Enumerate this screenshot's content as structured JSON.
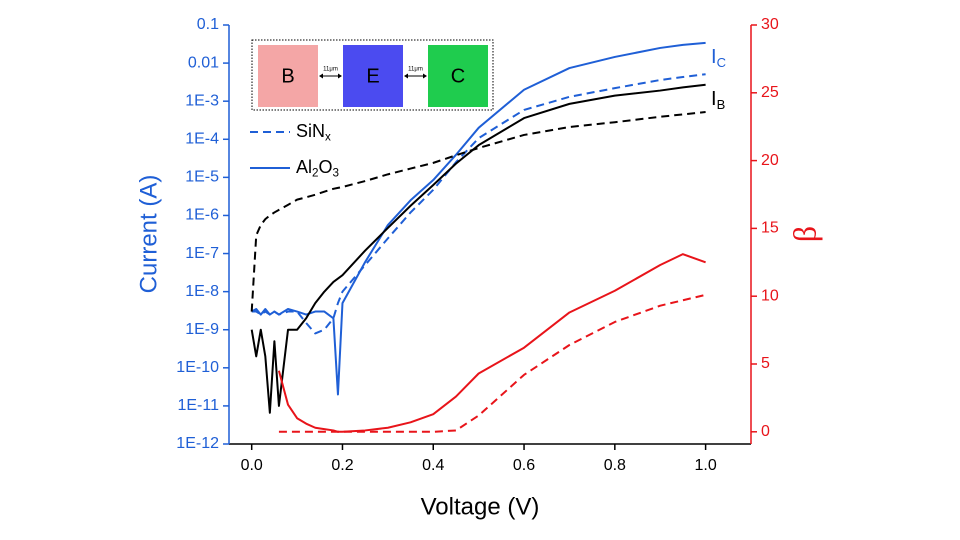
{
  "chart_data": {
    "type": "line",
    "x_label": "Voltage (V)",
    "y_label": "Current (A)",
    "y2_label": "β",
    "xlim": [
      -0.05,
      1.1
    ],
    "xticks": [
      {
        "value": 0,
        "label": "0.0"
      },
      0.2,
      0.4,
      0.6,
      0.8,
      {
        "value": 1,
        "label": "1.0"
      }
    ],
    "ylim": [
      1e-12,
      0.1
    ],
    "ylog": true,
    "yticks": [
      0.1,
      0.01,
      {
        "value": 0.001,
        "label": "1E-3"
      },
      {
        "value": 0.0001,
        "label": "1E-4"
      },
      {
        "value": 1e-05,
        "label": "1E-5"
      },
      {
        "value": 1e-06,
        "label": "1E-6"
      },
      {
        "value": 1e-07,
        "label": "1E-7"
      },
      {
        "value": 1e-08,
        "label": "1E-8"
      },
      {
        "value": 1e-09,
        "label": "1E-9"
      },
      {
        "value": 1e-10,
        "label": "1E-10"
      },
      {
        "value": 1e-11,
        "label": "1E-11"
      },
      {
        "value": 1e-12,
        "label": "1E-12"
      }
    ],
    "y2lim": [
      -0.9,
      30
    ],
    "y2ticks": [
      0,
      5,
      10,
      15,
      20,
      25,
      30
    ],
    "y_color": "#1f5fd6",
    "y2_color": "#e8141a",
    "x": [
      0,
      0.01,
      0.02,
      0.03,
      0.04,
      0.05,
      0.06,
      0.08,
      0.1,
      0.12,
      0.14,
      0.16,
      0.18,
      0.19,
      0.2,
      0.25,
      0.3,
      0.35,
      0.4,
      0.45,
      0.5,
      0.6,
      0.7,
      0.8,
      0.9,
      0.95,
      1.0
    ],
    "series": [
      {
        "color": "#1f5fd6",
        "dash": "solid",
        "values": [
          3e-09,
          3.5e-09,
          2.5e-09,
          3.5e-09,
          2.5e-09,
          3e-09,
          2.5e-09,
          3.5e-09,
          3e-09,
          2.5e-09,
          3e-09,
          3e-09,
          2e-09,
          2e-11,
          5e-09,
          6e-08,
          5.6e-07,
          2.5e-06,
          8.5e-06,
          3.9e-05,
          0.0002,
          0.002,
          0.0074,
          0.0145,
          0.025,
          0.03,
          0.034
        ]
      },
      {
        "color": "#1f5fd6",
        "dash": "dashed",
        "values": [
          3e-09,
          3e-09,
          2.5e-09,
          3e-09,
          2.5e-09,
          3e-09,
          2.5e-09,
          3e-09,
          3e-09,
          1.5e-09,
          8e-10,
          1e-09,
          2e-09,
          5e-09,
          1e-08,
          5e-08,
          2.5e-07,
          1.2e-06,
          4.7e-06,
          2.5e-05,
          0.000107,
          0.00059,
          0.0013,
          0.0022,
          0.0036,
          0.0043,
          0.0051
        ]
      },
      {
        "color": "#000000",
        "dash": "solid",
        "values": [
          1e-09,
          2e-10,
          1e-09,
          2e-10,
          6.6e-12,
          5e-10,
          1e-11,
          1e-09,
          1e-09,
          2e-09,
          5e-09,
          1e-08,
          1.8e-08,
          2.2e-08,
          2.7e-08,
          1.2e-07,
          4.7e-07,
          1.8e-06,
          6.3e-06,
          2.3e-05,
          7e-05,
          0.00036,
          0.00085,
          0.0014,
          0.0019,
          0.0023,
          0.0027
        ]
      },
      {
        "color": "#000000",
        "dash": "dashed",
        "values": [
          3e-09,
          3e-07,
          5.6e-07,
          8e-07,
          1e-06,
          1.2e-06,
          1.4e-06,
          1.9e-06,
          2.6e-06,
          3e-06,
          3.5e-06,
          4.2e-06,
          5e-06,
          5.3e-06,
          5.6e-06,
          8e-06,
          1.2e-05,
          1.7e-05,
          2.4e-05,
          3.8e-05,
          5.9e-05,
          0.00013,
          0.00021,
          0.00028,
          0.00039,
          0.00045,
          0.00052
        ]
      },
      {
        "color": "#e8141a",
        "dash": "solid",
        "axis": "y2",
        "values": [
          null,
          null,
          null,
          null,
          null,
          null,
          4.5,
          2,
          1,
          0.6,
          0.3,
          0.2,
          0.1,
          0,
          0,
          0.1,
          0.3,
          0.7,
          1.3,
          2.6,
          4.3,
          6.2,
          8.8,
          10.4,
          12.3,
          13.1,
          12.5
        ]
      },
      {
        "color": "#e8141a",
        "dash": "dashed",
        "axis": "y2",
        "values": [
          null,
          null,
          null,
          null,
          null,
          null,
          0,
          0,
          0,
          0,
          0,
          0,
          0,
          0,
          0,
          0,
          0,
          0,
          0,
          0.1,
          1.2,
          4.2,
          6.4,
          8.1,
          9.3,
          9.7,
          10.1
        ]
      }
    ],
    "legend": [
      {
        "parts": [
          "SiN",
          "x"
        ],
        "dash": "dashed",
        "color": "#1f5fd6"
      },
      {
        "parts": [
          "Al",
          "2",
          "O",
          "3"
        ],
        "dash": "solid",
        "color": "#1f5fd6"
      }
    ],
    "curve_labels": [
      {
        "parts": [
          "I",
          "C"
        ],
        "color": "#1f5fd6"
      },
      {
        "parts": [
          "I",
          "B"
        ],
        "color": "#000000"
      }
    ],
    "inset": {
      "boxes": [
        {
          "label": "B",
          "color": "#f4a6a6"
        },
        {
          "label": "E",
          "color": "#4b4bf0"
        },
        {
          "label": "C",
          "color": "#1fcc4e"
        }
      ],
      "gaps": [
        "11μm",
        "11μm"
      ]
    }
  }
}
